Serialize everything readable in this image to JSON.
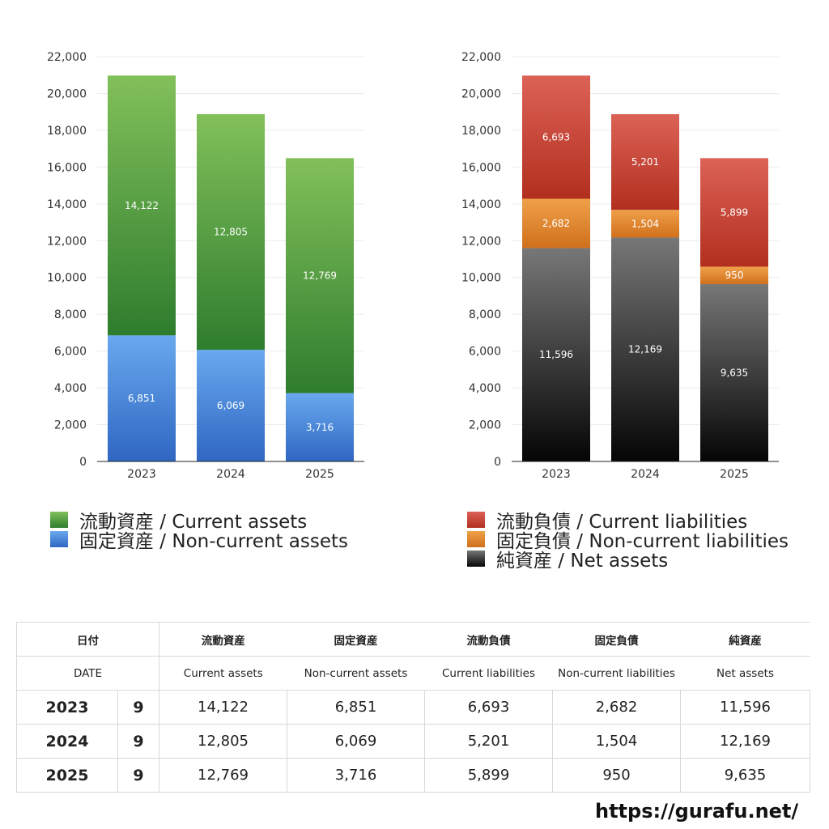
{
  "chart_data": [
    {
      "type": "bar",
      "stacked": true,
      "categories": [
        "2023",
        "2024",
        "2025"
      ],
      "ylim": [
        0,
        22000
      ],
      "yticks": [
        "0",
        "2,000",
        "4,000",
        "6,000",
        "8,000",
        "10,000",
        "12,000",
        "14,000",
        "16,000",
        "18,000",
        "20,000",
        "22,000"
      ],
      "grid": true,
      "legend_position": "bottom-left",
      "series": [
        {
          "name": "固定資産 / Non-current assets",
          "values": [
            6851,
            6069,
            3716
          ],
          "labels": [
            "6,851",
            "6,069",
            "3,716"
          ],
          "color_top": "#69a9ee",
          "color_bottom": "#2f66c2"
        },
        {
          "name": "流動資産 / Current assets",
          "values": [
            14122,
            12805,
            12769
          ],
          "labels": [
            "14,122",
            "12,805",
            "12,769"
          ],
          "color_top": "#82c05a",
          "color_bottom": "#2e7d2e"
        }
      ]
    },
    {
      "type": "bar",
      "stacked": true,
      "categories": [
        "2023",
        "2024",
        "2025"
      ],
      "ylim": [
        0,
        22000
      ],
      "yticks": [
        "0",
        "2,000",
        "4,000",
        "6,000",
        "8,000",
        "10,000",
        "12,000",
        "14,000",
        "16,000",
        "18,000",
        "20,000",
        "22,000"
      ],
      "grid": true,
      "legend_position": "bottom-left",
      "series": [
        {
          "name": "純資産 / Net assets",
          "values": [
            11596,
            12169,
            9635
          ],
          "labels": [
            "11,596",
            "12,169",
            "9,635"
          ],
          "color_top": "#777777",
          "color_bottom": "#050505"
        },
        {
          "name": "固定負債 / Non-current liabilities",
          "values": [
            2682,
            1504,
            950
          ],
          "labels": [
            "2,682",
            "1,504",
            "950"
          ],
          "color_top": "#f0a04a",
          "color_bottom": "#d0701c"
        },
        {
          "name": "流動負債 / Current liabilities",
          "values": [
            6693,
            5201,
            5899
          ],
          "labels": [
            "6,693",
            "5,201",
            "5,899"
          ],
          "color_top": "#dc6257",
          "color_bottom": "#b22f1e"
        }
      ]
    }
  ],
  "legend_left": [
    {
      "label": "流動資産 / Current assets",
      "color_top": "#82c05a",
      "color_bottom": "#2e7d2e"
    },
    {
      "label": "固定資産 / Non-current assets",
      "color_top": "#69a9ee",
      "color_bottom": "#2f66c2"
    }
  ],
  "legend_right": [
    {
      "label": "流動負債 / Current liabilities",
      "color_top": "#dc6257",
      "color_bottom": "#b22f1e"
    },
    {
      "label": "固定負債 / Non-current liabilities",
      "color_top": "#f0a04a",
      "color_bottom": "#d0701c"
    },
    {
      "label": "純資産 / Net assets",
      "color_top": "#777777",
      "color_bottom": "#050505"
    }
  ],
  "table": {
    "header_jp": {
      "date": "日付",
      "cols": [
        "流動資産",
        "固定資産",
        "流動負債",
        "固定負債",
        "純資産"
      ]
    },
    "header_en": {
      "date": "DATE",
      "cols": [
        "Current assets",
        "Non-current assets",
        "Current liabilities",
        "Non-current liabilities",
        "Net assets"
      ]
    },
    "rows": [
      {
        "year": "2023",
        "month": "9",
        "values": [
          "14,122",
          "6,851",
          "6,693",
          "2,682",
          "11,596"
        ]
      },
      {
        "year": "2024",
        "month": "9",
        "values": [
          "12,805",
          "6,069",
          "5,201",
          "1,504",
          "12,169"
        ]
      },
      {
        "year": "2025",
        "month": "9",
        "values": [
          "12,769",
          "3,716",
          "5,899",
          "950",
          "9,635"
        ]
      }
    ]
  },
  "site_url": "https://gurafu.net/"
}
